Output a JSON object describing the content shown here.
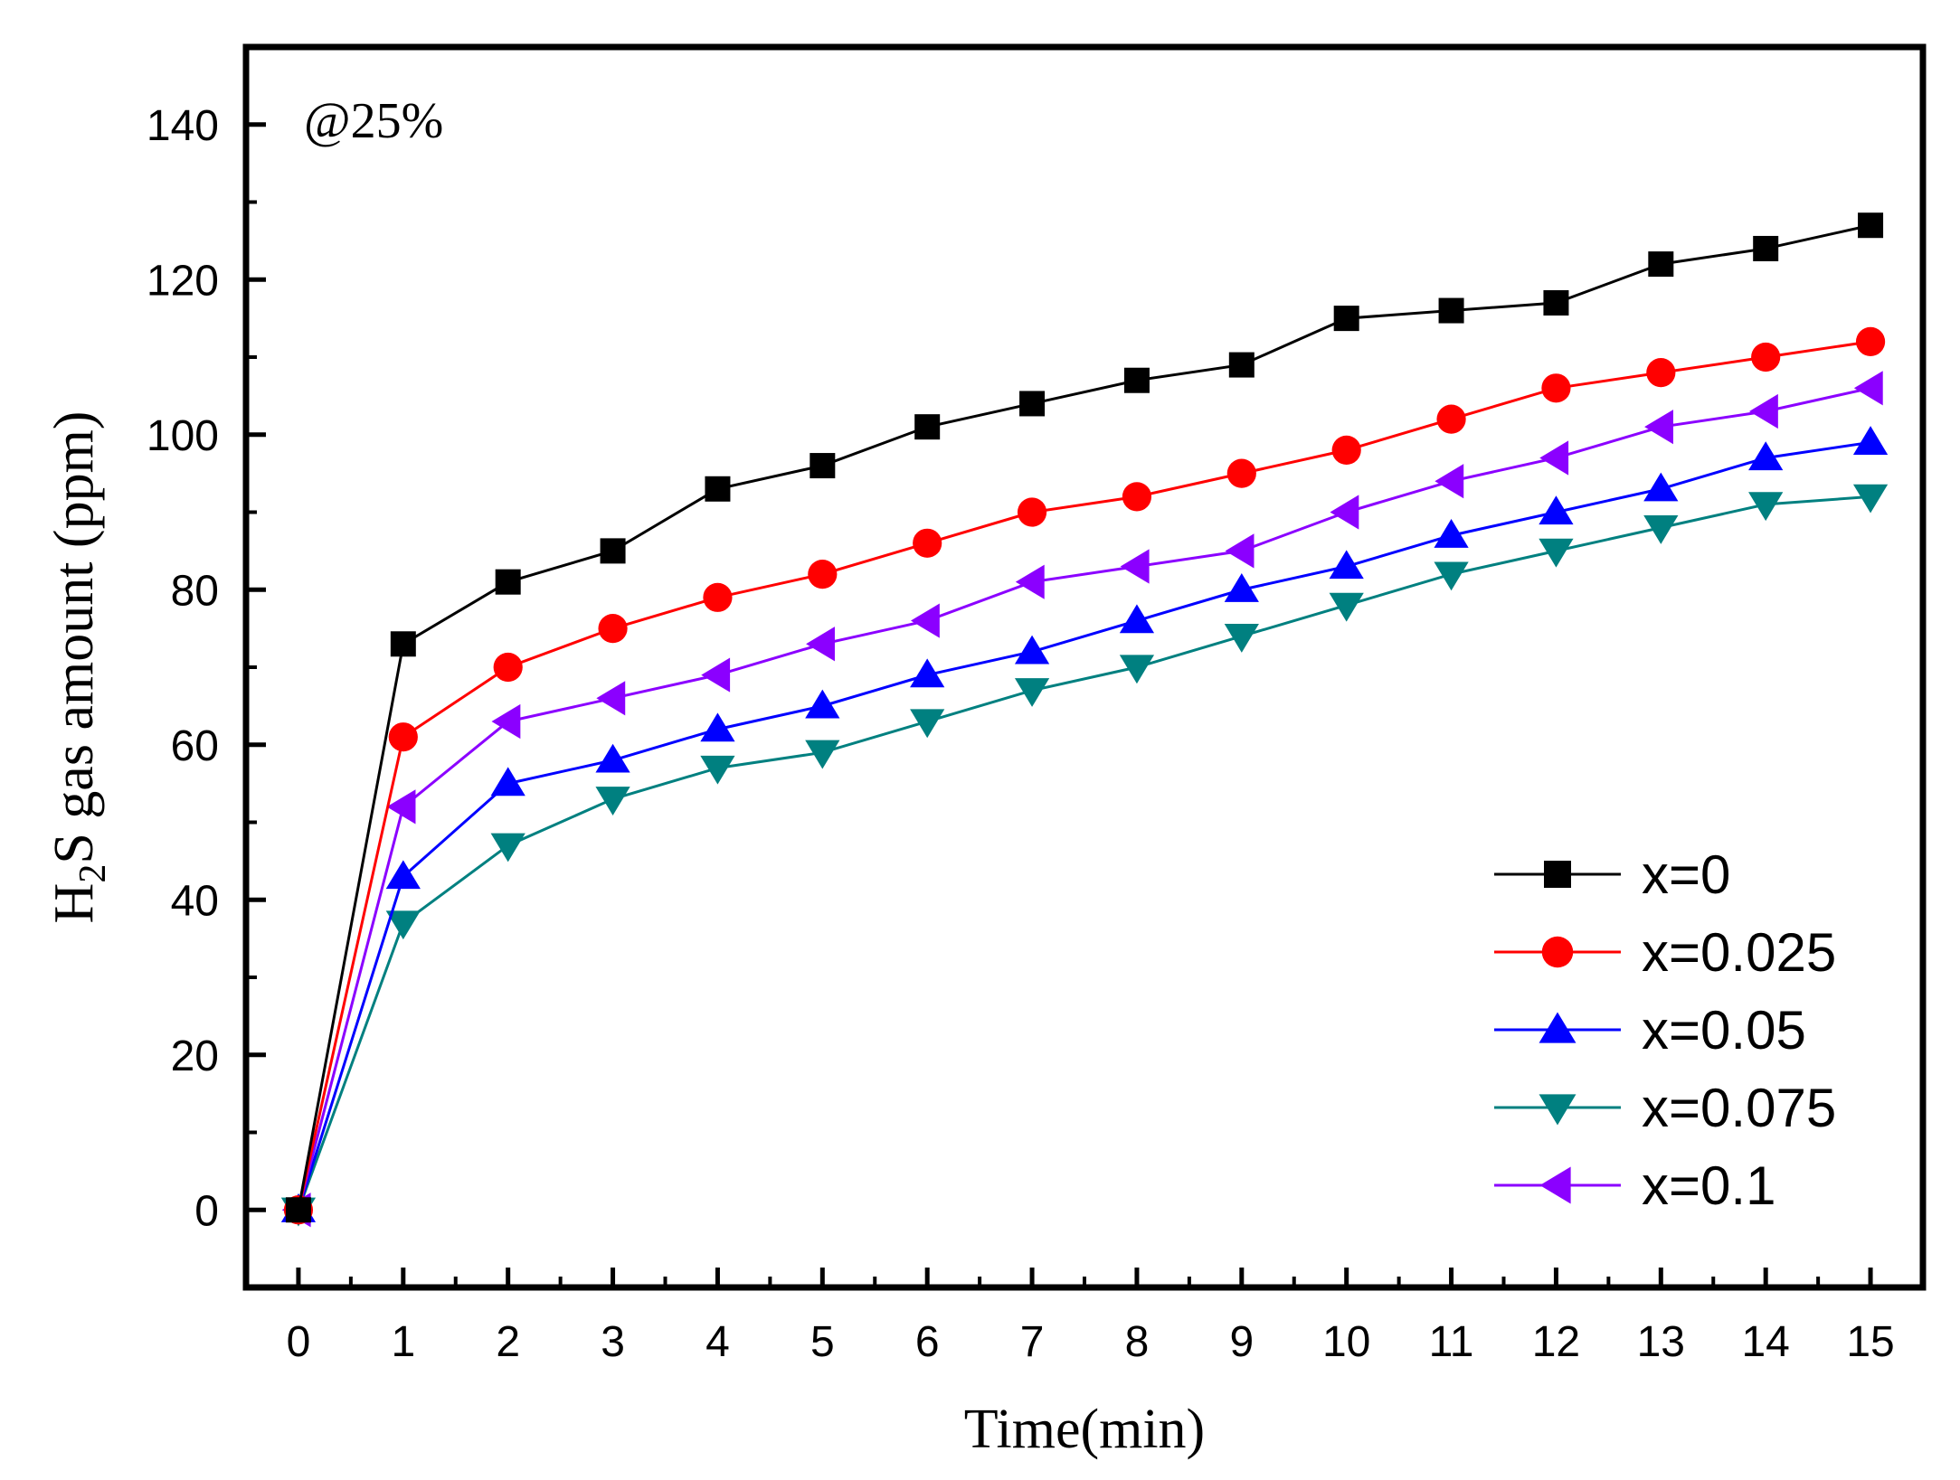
{
  "chart_data": {
    "type": "line",
    "title": "",
    "annotation": "@25%",
    "xlabel": "Time(min)",
    "ylabel": {
      "pre": "H",
      "sub": "2",
      "post": "S gas amount (ppm)"
    },
    "xlim": [
      -0.5,
      15.5
    ],
    "ylim": [
      -10,
      150
    ],
    "x_ticks": [
      0,
      1,
      2,
      3,
      4,
      5,
      6,
      7,
      8,
      9,
      10,
      11,
      12,
      13,
      14,
      15
    ],
    "y_ticks": [
      0,
      20,
      40,
      60,
      80,
      100,
      120,
      140
    ],
    "x": [
      0,
      1,
      2,
      3,
      4,
      5,
      6,
      7,
      8,
      9,
      10,
      11,
      12,
      13,
      14,
      15
    ],
    "legend_position": "bottom-right",
    "series": [
      {
        "name": "x=0",
        "marker": "square",
        "color": "#000000",
        "values": [
          0,
          73,
          81,
          85,
          93,
          96,
          101,
          104,
          107,
          109,
          115,
          116,
          117,
          122,
          124,
          127
        ]
      },
      {
        "name": "x=0.025",
        "marker": "circle",
        "color": "#ff0000",
        "values": [
          0,
          61,
          70,
          75,
          79,
          82,
          86,
          90,
          92,
          95,
          98,
          102,
          106,
          108,
          110,
          112
        ]
      },
      {
        "name": "x=0.05",
        "marker": "triangle-up",
        "color": "#0000ff",
        "values": [
          0,
          43,
          55,
          58,
          62,
          65,
          69,
          72,
          76,
          80,
          83,
          87,
          90,
          93,
          97,
          99
        ]
      },
      {
        "name": "x=0.075",
        "marker": "triangle-down",
        "color": "#008080",
        "values": [
          0,
          37,
          47,
          53,
          57,
          59,
          63,
          67,
          70,
          74,
          78,
          82,
          85,
          88,
          91,
          92
        ]
      },
      {
        "name": "x=0.1",
        "marker": "triangle-left",
        "color": "#8b00ff",
        "values": [
          0,
          52,
          63,
          66,
          69,
          73,
          76,
          81,
          83,
          85,
          90,
          94,
          97,
          101,
          103,
          106
        ]
      }
    ]
  }
}
